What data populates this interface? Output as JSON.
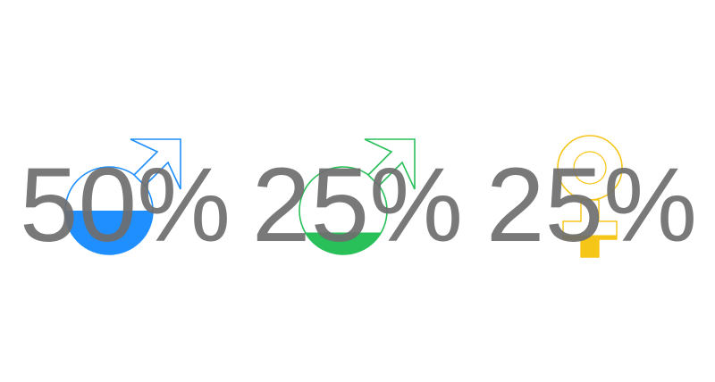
{
  "chart_data": {
    "type": "pictograph",
    "items": [
      {
        "symbol": "male-symbol-icon",
        "value": 50,
        "label": "50%",
        "color": "#1f8fff"
      },
      {
        "symbol": "male-symbol-icon",
        "value": 25,
        "label": "25%",
        "color": "#29c05a"
      },
      {
        "symbol": "female-symbol-icon",
        "value": 25,
        "label": "25%",
        "color": "#f5c518"
      }
    ]
  }
}
